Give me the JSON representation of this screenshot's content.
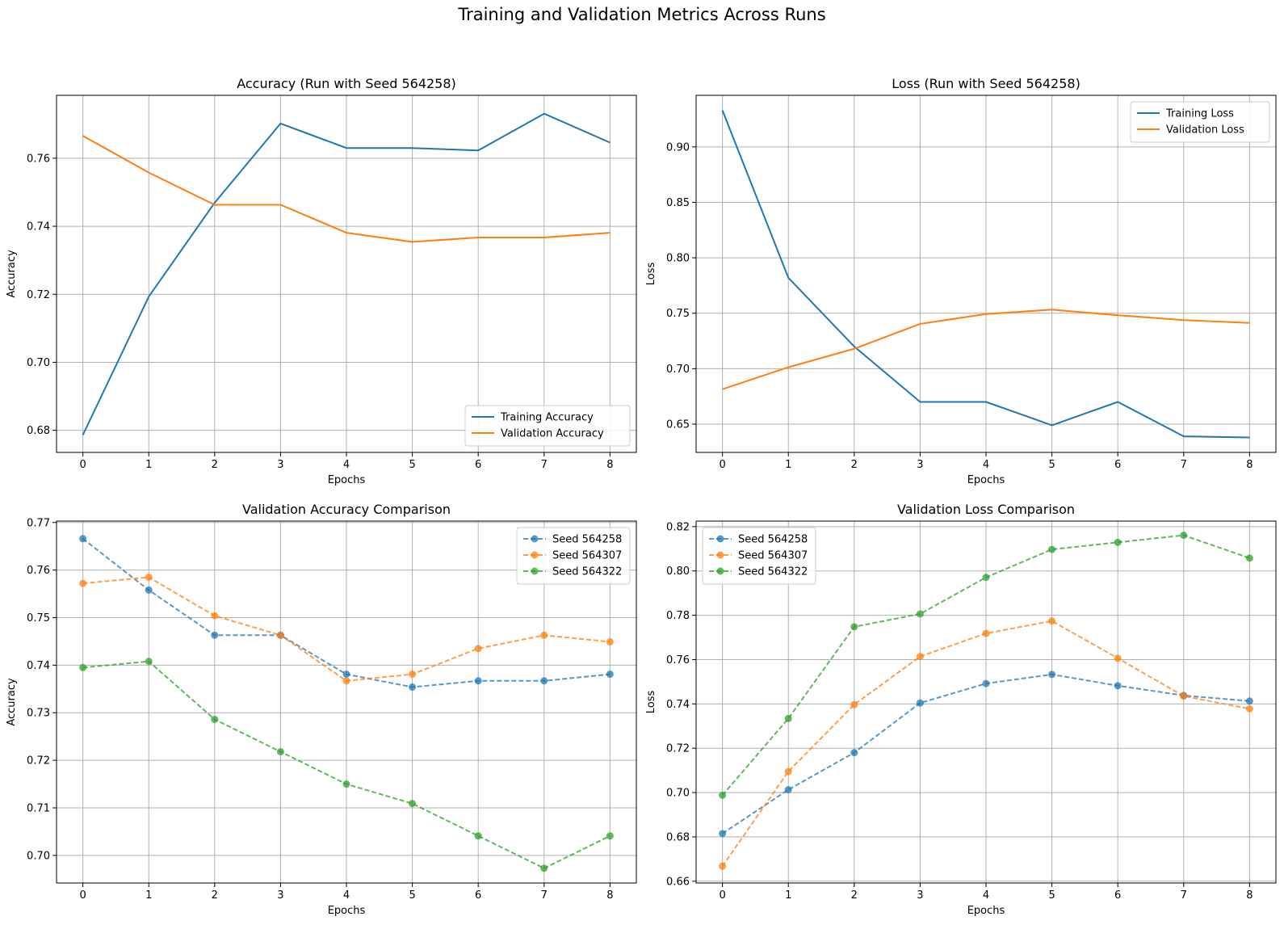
{
  "figure": {
    "title": "Training and Validation Metrics Across Runs"
  },
  "colors": {
    "blue": "#1f77b4",
    "orange": "#ff7f0e",
    "green": "#2ca02c",
    "grid": "#b0b0b0"
  },
  "chart_data": [
    {
      "id": "acc",
      "type": "line",
      "title": "Accuracy (Run with Seed 564258)",
      "xlabel": "Epochs",
      "ylabel": "Accuracy",
      "xlim": [
        -0.4,
        8.4
      ],
      "ylim": [
        0.6735,
        0.7785
      ],
      "xticks": [
        0,
        1,
        2,
        3,
        4,
        5,
        6,
        7,
        8
      ],
      "yticks": [
        0.68,
        0.7,
        0.72,
        0.74,
        0.76
      ],
      "ytick_decimals": 2,
      "grid": true,
      "legend": "lower right",
      "x": [
        0,
        1,
        2,
        3,
        4,
        5,
        6,
        7,
        8
      ],
      "series": [
        {
          "name": "Training Accuracy",
          "color": "blue",
          "style": "solid",
          "marker": false,
          "values": [
            0.6786,
            0.7193,
            0.7469,
            0.7702,
            0.763,
            0.763,
            0.7623,
            0.7731,
            0.7646
          ]
        },
        {
          "name": "Validation Accuracy",
          "color": "orange",
          "style": "solid",
          "marker": false,
          "values": [
            0.7666,
            0.7558,
            0.7463,
            0.7463,
            0.7381,
            0.7354,
            0.7367,
            0.7367,
            0.7381
          ]
        }
      ]
    },
    {
      "id": "loss",
      "type": "line",
      "title": "Loss (Run with Seed 564258)",
      "xlabel": "Epochs",
      "ylabel": "Loss",
      "xlim": [
        -0.4,
        8.4
      ],
      "ylim": [
        0.6245,
        0.9465
      ],
      "xticks": [
        0,
        1,
        2,
        3,
        4,
        5,
        6,
        7,
        8
      ],
      "yticks": [
        0.65,
        0.7,
        0.75,
        0.8,
        0.85,
        0.9
      ],
      "ytick_decimals": 2,
      "grid": true,
      "legend": "upper right",
      "x": [
        0,
        1,
        2,
        3,
        4,
        5,
        6,
        7,
        8
      ],
      "series": [
        {
          "name": "Training Loss",
          "color": "blue",
          "style": "solid",
          "marker": false,
          "values": [
            0.933,
            0.782,
            0.72,
            0.67,
            0.67,
            0.649,
            0.67,
            0.639,
            0.638
          ]
        },
        {
          "name": "Validation Loss",
          "color": "orange",
          "style": "solid",
          "marker": false,
          "values": [
            0.6815,
            0.7013,
            0.718,
            0.7404,
            0.7492,
            0.7533,
            0.7482,
            0.7438,
            0.7413
          ]
        }
      ]
    },
    {
      "id": "vacc",
      "type": "line",
      "title": "Validation Accuracy Comparison",
      "xlabel": "Epochs",
      "ylabel": "Accuracy",
      "xlim": [
        -0.4,
        8.4
      ],
      "ylim": [
        0.6942,
        0.7703
      ],
      "xticks": [
        0,
        1,
        2,
        3,
        4,
        5,
        6,
        7,
        8
      ],
      "yticks": [
        0.7,
        0.71,
        0.72,
        0.73,
        0.74,
        0.75,
        0.76,
        0.77
      ],
      "ytick_decimals": 2,
      "grid": true,
      "legend": "upper right",
      "x": [
        0,
        1,
        2,
        3,
        4,
        5,
        6,
        7,
        8
      ],
      "series": [
        {
          "name": "Seed 564258",
          "color": "blue",
          "style": "dashed",
          "marker": true,
          "values": [
            0.7666,
            0.7558,
            0.7463,
            0.7463,
            0.7381,
            0.7354,
            0.7367,
            0.7367,
            0.7381
          ]
        },
        {
          "name": "Seed 564307",
          "color": "orange",
          "style": "dashed",
          "marker": true,
          "values": [
            0.7572,
            0.7585,
            0.7504,
            0.7463,
            0.7367,
            0.7381,
            0.7435,
            0.7463,
            0.7449
          ]
        },
        {
          "name": "Seed 564322",
          "color": "green",
          "style": "dashed",
          "marker": true,
          "values": [
            0.7395,
            0.7408,
            0.7286,
            0.7218,
            0.715,
            0.7109,
            0.7041,
            0.6973,
            0.7041
          ]
        }
      ]
    },
    {
      "id": "vloss",
      "type": "line",
      "title": "Validation Loss Comparison",
      "xlabel": "Epochs",
      "ylabel": "Loss",
      "xlim": [
        -0.4,
        8.4
      ],
      "ylim": [
        0.6592,
        0.8225
      ],
      "xticks": [
        0,
        1,
        2,
        3,
        4,
        5,
        6,
        7,
        8
      ],
      "yticks": [
        0.66,
        0.68,
        0.7,
        0.72,
        0.74,
        0.76,
        0.78,
        0.8,
        0.82
      ],
      "ytick_decimals": 2,
      "grid": true,
      "legend": "upper left",
      "x": [
        0,
        1,
        2,
        3,
        4,
        5,
        6,
        7,
        8
      ],
      "series": [
        {
          "name": "Seed 564258",
          "color": "blue",
          "style": "dashed",
          "marker": true,
          "values": [
            0.6815,
            0.7013,
            0.718,
            0.7404,
            0.7492,
            0.7533,
            0.7482,
            0.7438,
            0.7413
          ]
        },
        {
          "name": "Seed 564307",
          "color": "orange",
          "style": "dashed",
          "marker": true,
          "values": [
            0.6668,
            0.7095,
            0.7397,
            0.7614,
            0.7718,
            0.7774,
            0.7606,
            0.7435,
            0.7378
          ]
        },
        {
          "name": "Seed 564322",
          "color": "green",
          "style": "dashed",
          "marker": true,
          "values": [
            0.6988,
            0.7334,
            0.7748,
            0.7806,
            0.7971,
            0.8097,
            0.8129,
            0.8161,
            0.8058
          ]
        }
      ]
    }
  ]
}
